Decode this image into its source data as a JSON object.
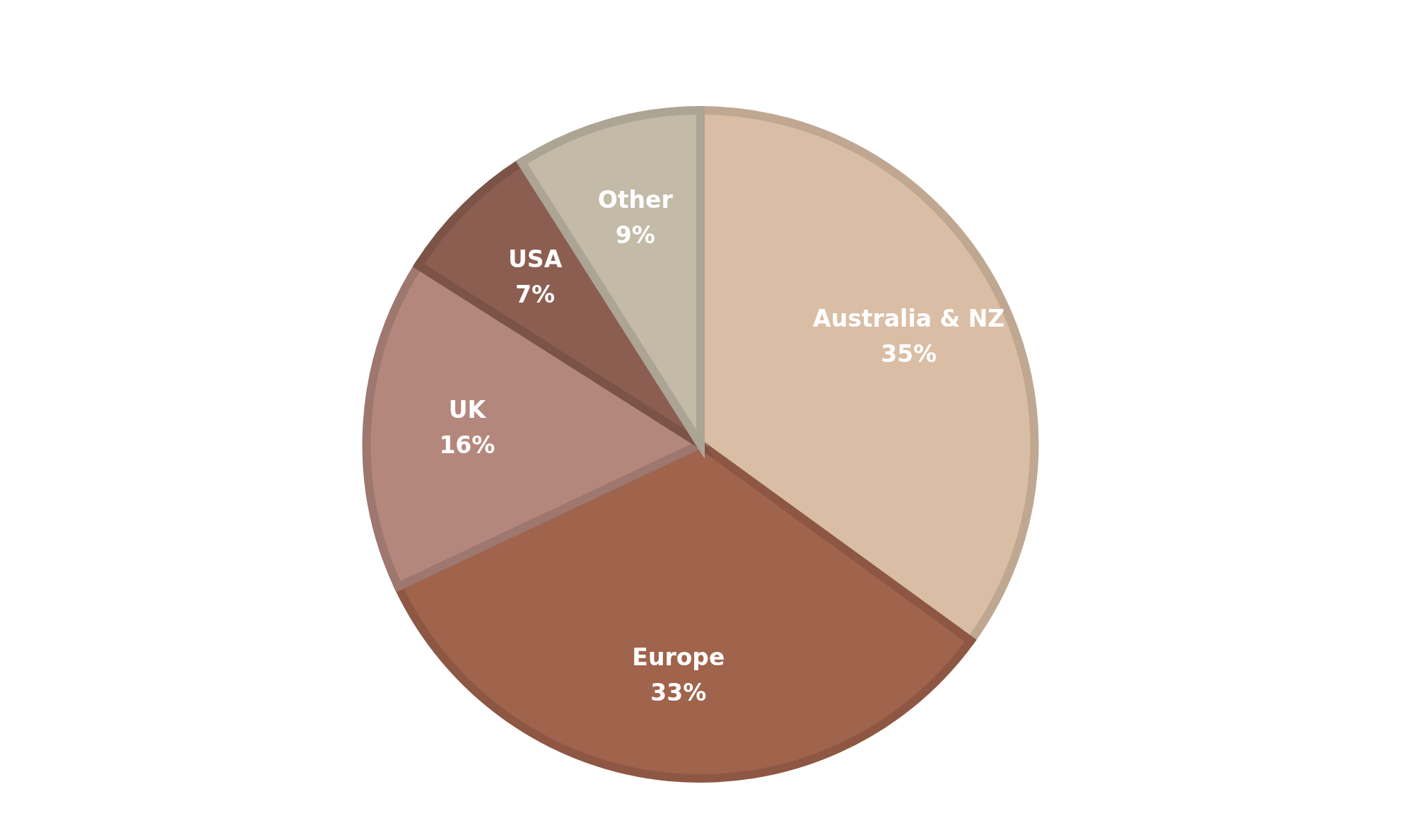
{
  "chart_data": {
    "type": "pie",
    "categories": [
      "Australia & NZ",
      "Europe",
      "UK",
      "USA",
      "Other"
    ],
    "values": [
      35,
      33,
      16,
      7,
      9
    ],
    "value_labels": [
      "35%",
      "33%",
      "16%",
      "7%",
      "9%"
    ],
    "colors": [
      "#d9bea5",
      "#a0634c",
      "#b4877d",
      "#8c5e51",
      "#c4baa8"
    ],
    "legend": false
  }
}
